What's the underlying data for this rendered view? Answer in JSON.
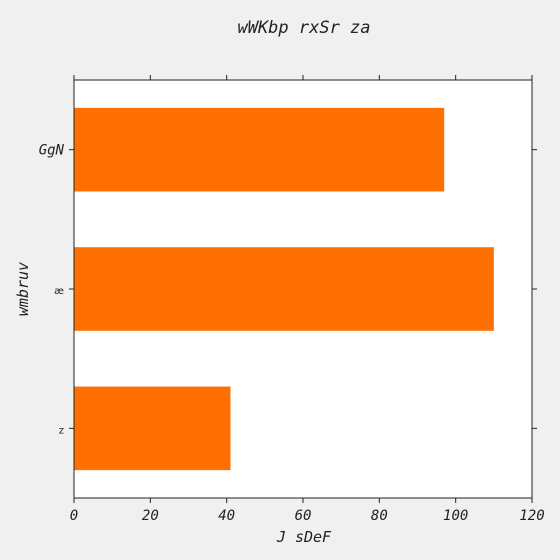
{
  "chart_data": {
    "type": "bar",
    "orientation": "horizontal",
    "title": "wWKbp rxSr za",
    "xlabel": "J sDeF",
    "ylabel": "wmbruv",
    "categories": [
      "GgN",
      "æ",
      "z"
    ],
    "values": [
      97,
      110,
      41
    ],
    "xlim": [
      0,
      120
    ],
    "xticks": [
      0,
      20,
      40,
      60,
      80,
      100,
      120
    ],
    "grid": false,
    "legend": "none",
    "bar_color": "#ff7000",
    "plot_background": "#ffffff",
    "figure_background": "#f0f0f0"
  }
}
